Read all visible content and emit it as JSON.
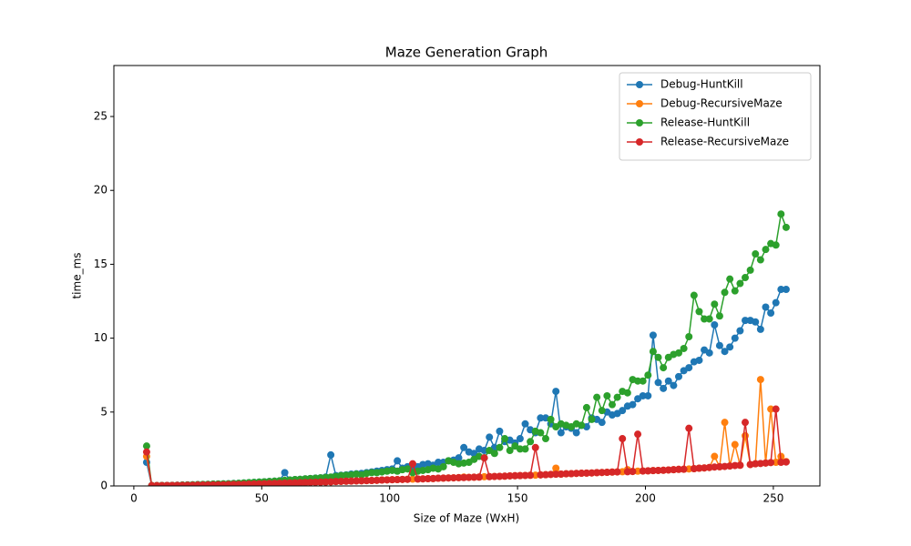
{
  "chart_data": {
    "type": "line",
    "title": "Maze Generation Graph",
    "x_label": "Size of Maze (WxH)",
    "y_label": "time_ms",
    "x": [
      5,
      7,
      9,
      11,
      13,
      15,
      17,
      19,
      21,
      23,
      25,
      27,
      29,
      31,
      33,
      35,
      37,
      39,
      41,
      43,
      45,
      47,
      49,
      51,
      53,
      55,
      57,
      59,
      61,
      63,
      65,
      67,
      69,
      71,
      73,
      75,
      77,
      79,
      81,
      83,
      85,
      87,
      89,
      91,
      93,
      95,
      97,
      99,
      101,
      103,
      105,
      107,
      109,
      111,
      113,
      115,
      117,
      119,
      121,
      123,
      125,
      127,
      129,
      131,
      133,
      135,
      137,
      139,
      141,
      143,
      145,
      147,
      149,
      151,
      153,
      155,
      157,
      159,
      161,
      163,
      165,
      167,
      169,
      171,
      173,
      175,
      177,
      179,
      181,
      183,
      185,
      187,
      189,
      191,
      193,
      195,
      197,
      199,
      201,
      203,
      205,
      207,
      209,
      211,
      213,
      215,
      217,
      219,
      221,
      223,
      225,
      227,
      229,
      231,
      233,
      235,
      237,
      239,
      241,
      243,
      245,
      247,
      249,
      251,
      253,
      255
    ],
    "series": [
      {
        "name": "Debug-HuntKill",
        "color": "#1f77b4",
        "values": [
          1.6,
          0.02,
          0.02,
          0.03,
          0.03,
          0.04,
          0.05,
          0.06,
          0.07,
          0.08,
          0.09,
          0.1,
          0.11,
          0.12,
          0.13,
          0.14,
          0.15,
          0.17,
          0.18,
          0.2,
          0.22,
          0.24,
          0.26,
          0.28,
          0.3,
          0.32,
          0.35,
          0.9,
          0.4,
          0.43,
          0.45,
          0.48,
          0.5,
          0.53,
          0.55,
          0.6,
          2.1,
          0.7,
          0.72,
          0.75,
          0.8,
          0.82,
          0.85,
          0.9,
          0.95,
          1.0,
          1.05,
          1.1,
          1.15,
          1.7,
          1.2,
          1.3,
          1.35,
          1.3,
          1.45,
          1.5,
          1.4,
          1.6,
          1.6,
          1.7,
          1.75,
          1.9,
          2.6,
          2.3,
          2.2,
          2.5,
          2.4,
          3.3,
          2.6,
          3.7,
          3.0,
          3.1,
          2.9,
          3.2,
          4.2,
          3.8,
          3.6,
          4.6,
          4.6,
          4.2,
          6.4,
          3.6,
          4.0,
          3.9,
          3.6,
          4.1,
          4.0,
          4.6,
          4.5,
          4.3,
          5.0,
          4.8,
          4.9,
          5.1,
          5.4,
          5.5,
          5.9,
          6.1,
          6.1,
          10.2,
          7.0,
          6.6,
          7.1,
          6.8,
          7.4,
          7.8,
          8.0,
          8.4,
          8.5,
          9.2,
          9.0,
          10.9,
          9.5,
          9.1,
          9.4,
          10.0,
          10.5,
          11.2,
          11.2,
          11.1,
          10.6,
          12.1,
          11.7,
          12.4,
          13.3,
          13.3
        ]
      },
      {
        "name": "Debug-RecursiveMaze",
        "color": "#ff7f0e",
        "values": [
          2.0,
          0.02,
          0.02,
          0.02,
          0.03,
          0.03,
          0.04,
          0.04,
          0.05,
          0.05,
          0.06,
          0.06,
          0.07,
          0.07,
          0.08,
          0.08,
          0.09,
          0.1,
          0.1,
          0.11,
          0.12,
          0.13,
          0.14,
          0.15,
          0.16,
          0.17,
          0.18,
          0.19,
          0.2,
          0.21,
          0.22,
          0.23,
          0.24,
          0.25,
          0.26,
          0.27,
          0.28,
          0.3,
          0.31,
          0.32,
          0.33,
          0.34,
          0.35,
          0.36,
          0.37,
          0.38,
          0.4,
          0.41,
          0.42,
          0.43,
          0.44,
          0.45,
          0.46,
          0.47,
          0.48,
          0.49,
          0.5,
          0.52,
          0.53,
          0.54,
          0.55,
          0.56,
          0.6,
          0.58,
          0.59,
          0.6,
          0.62,
          0.63,
          0.64,
          0.65,
          0.66,
          0.68,
          0.69,
          0.7,
          0.71,
          0.72,
          0.73,
          0.75,
          0.76,
          0.78,
          1.2,
          0.8,
          0.82,
          0.83,
          0.85,
          0.86,
          0.87,
          0.88,
          0.9,
          0.91,
          0.92,
          0.94,
          0.95,
          0.96,
          1.1,
          0.98,
          1.0,
          1.01,
          1.02,
          1.04,
          1.05,
          1.06,
          1.08,
          1.1,
          1.12,
          1.13,
          1.15,
          1.17,
          1.2,
          1.22,
          1.25,
          2.0,
          1.3,
          4.3,
          1.35,
          2.8,
          1.4,
          3.4,
          1.45,
          1.5,
          7.2,
          1.55,
          5.2,
          1.6,
          2.0,
          1.65
        ]
      },
      {
        "name": "Release-HuntKill",
        "color": "#2ca02c",
        "values": [
          2.7,
          0.02,
          0.02,
          0.03,
          0.03,
          0.04,
          0.05,
          0.06,
          0.07,
          0.08,
          0.09,
          0.1,
          0.11,
          0.12,
          0.13,
          0.14,
          0.15,
          0.16,
          0.18,
          0.2,
          0.22,
          0.24,
          0.26,
          0.28,
          0.3,
          0.32,
          0.35,
          0.38,
          0.4,
          0.43,
          0.45,
          0.48,
          0.5,
          0.52,
          0.55,
          0.58,
          0.6,
          0.65,
          0.7,
          0.72,
          0.75,
          0.8,
          0.75,
          0.85,
          0.9,
          0.9,
          0.95,
          1.0,
          1.05,
          1.0,
          1.1,
          1.15,
          0.9,
          1.0,
          1.05,
          1.1,
          1.2,
          1.15,
          1.3,
          1.7,
          1.6,
          1.5,
          1.55,
          1.6,
          1.8,
          2.0,
          1.9,
          2.4,
          2.2,
          2.6,
          3.2,
          2.4,
          2.7,
          2.5,
          2.5,
          3.0,
          3.7,
          3.6,
          3.2,
          4.5,
          4.0,
          4.2,
          4.1,
          4.0,
          4.2,
          4.1,
          5.3,
          4.5,
          6.0,
          5.1,
          6.1,
          5.5,
          6.0,
          6.4,
          6.3,
          7.2,
          7.1,
          7.1,
          7.5,
          9.1,
          8.7,
          8.0,
          8.7,
          8.9,
          9.0,
          9.3,
          10.1,
          12.9,
          11.8,
          11.3,
          11.3,
          12.3,
          11.5,
          13.1,
          14.0,
          13.2,
          13.7,
          14.1,
          14.6,
          15.7,
          15.3,
          16.0,
          16.4,
          16.3,
          18.4,
          17.5
        ]
      },
      {
        "name": "Release-RecursiveMaze",
        "color": "#d62728",
        "values": [
          2.3,
          0.02,
          0.02,
          0.02,
          0.03,
          0.03,
          0.04,
          0.04,
          0.05,
          0.05,
          0.06,
          0.06,
          0.07,
          0.07,
          0.08,
          0.08,
          0.09,
          0.1,
          0.1,
          0.11,
          0.12,
          0.13,
          0.14,
          0.15,
          0.16,
          0.17,
          0.18,
          0.19,
          0.2,
          0.21,
          0.22,
          0.23,
          0.24,
          0.25,
          0.26,
          0.27,
          0.28,
          0.3,
          0.31,
          0.32,
          0.33,
          0.34,
          0.35,
          0.36,
          0.37,
          0.38,
          0.4,
          0.41,
          0.42,
          0.43,
          0.44,
          0.45,
          1.5,
          0.47,
          0.48,
          0.49,
          0.5,
          0.52,
          0.53,
          0.54,
          0.55,
          0.56,
          0.57,
          0.58,
          0.59,
          0.6,
          1.9,
          0.63,
          0.64,
          0.65,
          0.66,
          0.68,
          0.69,
          0.7,
          0.71,
          0.72,
          2.6,
          0.75,
          0.76,
          0.78,
          0.79,
          0.8,
          0.82,
          0.83,
          0.85,
          0.86,
          0.87,
          0.88,
          0.9,
          0.91,
          0.92,
          0.94,
          0.95,
          3.2,
          0.96,
          0.98,
          3.5,
          1.01,
          1.02,
          1.04,
          1.05,
          1.06,
          1.08,
          1.1,
          1.12,
          1.13,
          3.9,
          1.17,
          1.2,
          1.22,
          1.25,
          1.28,
          1.3,
          1.32,
          1.35,
          1.38,
          1.4,
          4.3,
          1.45,
          1.5,
          1.52,
          1.55,
          1.58,
          5.2,
          1.6,
          1.62
        ]
      }
    ],
    "xlim": [
      -7.8,
      268.2
    ],
    "ylim": [
      0,
      28.45
    ],
    "xticks": [
      0,
      50,
      100,
      150,
      200,
      250
    ],
    "yticks": [
      0,
      5,
      10,
      15,
      20,
      25
    ],
    "grid": false,
    "legend": "upper right"
  }
}
